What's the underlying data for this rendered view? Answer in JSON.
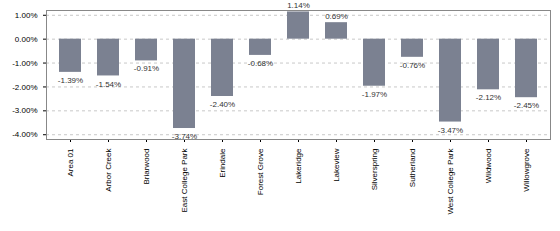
{
  "chart_data": {
    "type": "bar",
    "categories": [
      "Area 01",
      "Arbor Creek",
      "Briarwood",
      "East College Park",
      "Erindale",
      "Forest Grove",
      "Lakeridge",
      "Lakeview",
      "Silverspring",
      "Sutherland",
      "West College Park",
      "Wildwood",
      "Willowgrove"
    ],
    "values": [
      -1.39,
      -1.54,
      -0.91,
      -3.74,
      -2.4,
      -0.68,
      1.14,
      0.69,
      -1.97,
      -0.76,
      -3.47,
      -2.12,
      -2.45
    ],
    "value_labels": [
      "-1.39%",
      "-1.54%",
      "-0.91%",
      "-3.74%",
      "-2.40%",
      "-0.68%",
      "1.14%",
      "0.69%",
      "-1.97%",
      "-0.76%",
      "-3.47%",
      "-2.12%",
      "-2.45%"
    ],
    "color": "#7b8191",
    "ylim": [
      -4.2,
      1.2
    ],
    "yticks": [
      {
        "value": 1,
        "label": "1.00%"
      },
      {
        "value": 0,
        "label": "0.00%"
      },
      {
        "value": -1,
        "label": "-1.00%"
      },
      {
        "value": -2,
        "label": "-2.00%"
      },
      {
        "value": -3,
        "label": "-3.00%"
      },
      {
        "value": -4,
        "label": "-4.00%"
      }
    ],
    "grid": true,
    "data_labels": true
  }
}
